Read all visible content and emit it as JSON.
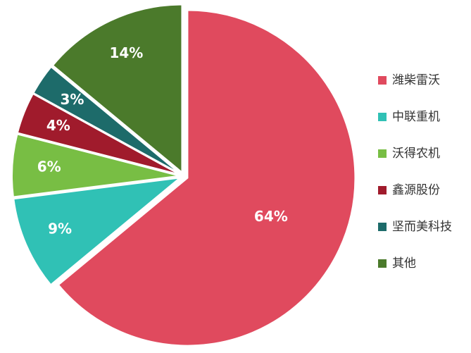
{
  "chart_data": {
    "type": "pie",
    "categories": [
      "潍柴雷沃",
      "中联重机",
      "沃得农机",
      "鑫源股份",
      "坚而美科技",
      "其他"
    ],
    "values": [
      64,
      9,
      6,
      4,
      3,
      14
    ],
    "value_labels": [
      "64%",
      "9%",
      "6%",
      "4%",
      "3%",
      "14%"
    ],
    "colors": [
      "#e04a5e",
      "#30c1b5",
      "#78be44",
      "#a01b2c",
      "#1d6b6a",
      "#4b7a2b"
    ],
    "legend": "right"
  }
}
